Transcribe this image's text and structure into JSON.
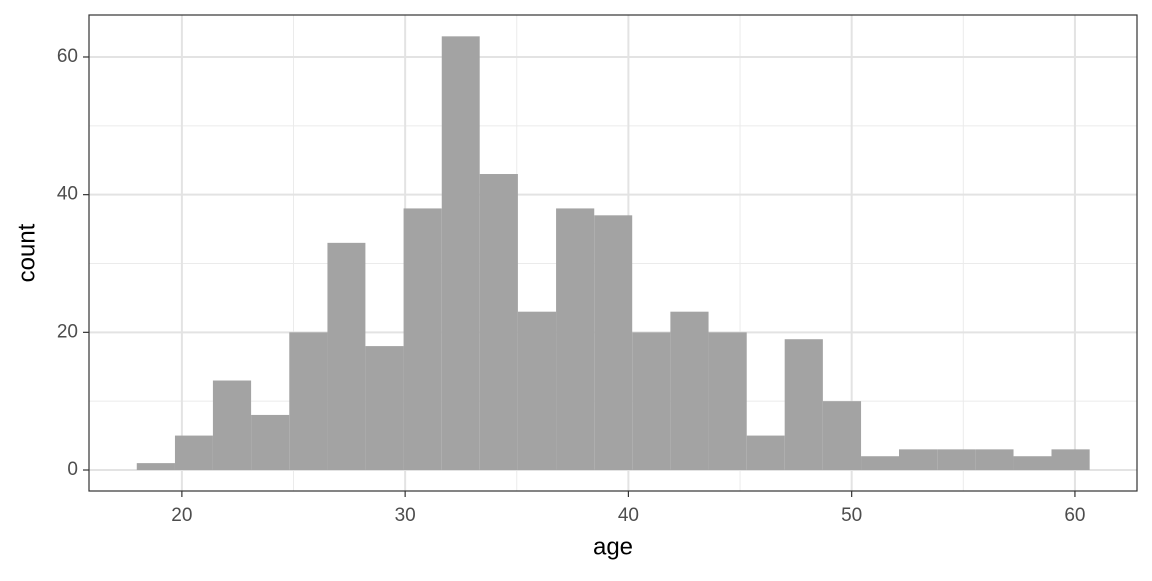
{
  "chart_data": {
    "type": "histogram",
    "xlabel": "age",
    "ylabel": "count",
    "bins": [
      17.98,
      19.69,
      21.39,
      23.1,
      24.81,
      26.52,
      28.22,
      29.93,
      31.64,
      33.34,
      35.05,
      36.76,
      38.47,
      40.17,
      41.88,
      43.59,
      45.3,
      47.0,
      48.71,
      50.42,
      52.12,
      53.83,
      55.54,
      57.25,
      58.95,
      60.66
    ],
    "values": [
      1,
      5,
      13,
      8,
      20,
      33,
      18,
      38,
      63,
      43,
      23,
      38,
      37,
      20,
      23,
      20,
      5,
      19,
      10,
      2,
      3,
      3,
      3,
      2,
      3
    ],
    "color": "#a3a3a3",
    "xlim": [
      15.84,
      62.78
    ],
    "ylim": [
      -3.05,
      66.1
    ],
    "xticks": [
      20,
      30,
      40,
      50,
      60
    ],
    "yticks": [
      0,
      20,
      40,
      60
    ],
    "xminor": [
      25,
      35,
      45,
      55
    ],
    "yminor": [
      10,
      30,
      50
    ],
    "grid": true
  }
}
